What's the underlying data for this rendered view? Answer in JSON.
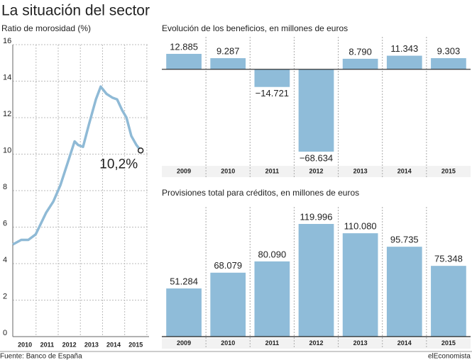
{
  "title": "La situación del sector",
  "source": "Fuente: Banco de España",
  "brand": "elEconomista",
  "chart_data": [
    {
      "type": "line",
      "title": "Ratio de morosidad (%)",
      "color": "#8fbad6",
      "x": [
        2009.45,
        2009.83,
        2010.15,
        2010.48,
        2010.64,
        2010.96,
        2011.28,
        2011.6,
        2011.92,
        2012.24,
        2012.4,
        2012.62,
        2012.88,
        2013.2,
        2013.42,
        2013.68,
        2013.94,
        2014.16,
        2014.39,
        2014.58,
        2014.8,
        2015.03,
        2015.22
      ],
      "values": [
        5.05,
        5.3,
        5.3,
        5.6,
        6.0,
        6.8,
        7.4,
        8.3,
        9.5,
        10.7,
        10.5,
        10.4,
        11.6,
        13.0,
        13.7,
        13.3,
        13.1,
        13.0,
        12.4,
        12.0,
        11.0,
        10.5,
        10.2
      ],
      "xlim": [
        2009.45,
        2015.6
      ],
      "xticks": [
        2010,
        2011,
        2012,
        2013,
        2014,
        2015
      ],
      "ylim": [
        0,
        16
      ],
      "yticks": [
        0,
        2,
        4,
        6,
        8,
        10,
        12,
        14,
        16
      ],
      "grid": true,
      "annotation": "10,2%"
    },
    {
      "type": "bar",
      "title": "Evolución de los beneficios, en millones de euros",
      "color": "#8fbcd9",
      "categories": [
        "2009",
        "2010",
        "2011",
        "2012",
        "2013",
        "2014",
        "2015"
      ],
      "values": [
        12885,
        9287,
        -14721,
        -68634,
        8790,
        11343,
        9303
      ],
      "value_labels": [
        "12.885",
        "9.287",
        "−14.721",
        "−68.634",
        "8.790",
        "11.343",
        "9.303"
      ]
    },
    {
      "type": "bar",
      "title": "Provisiones total para créditos, en millones de euros",
      "color": "#8fbcd9",
      "categories": [
        "2009",
        "2010",
        "2011",
        "2012",
        "2013",
        "2014",
        "2015"
      ],
      "values": [
        51284,
        68079,
        80090,
        119996,
        110080,
        95735,
        75348
      ],
      "value_labels": [
        "51.284",
        "68.079",
        "80.090",
        "119.996",
        "110.080",
        "95.735",
        "75.348"
      ]
    }
  ]
}
